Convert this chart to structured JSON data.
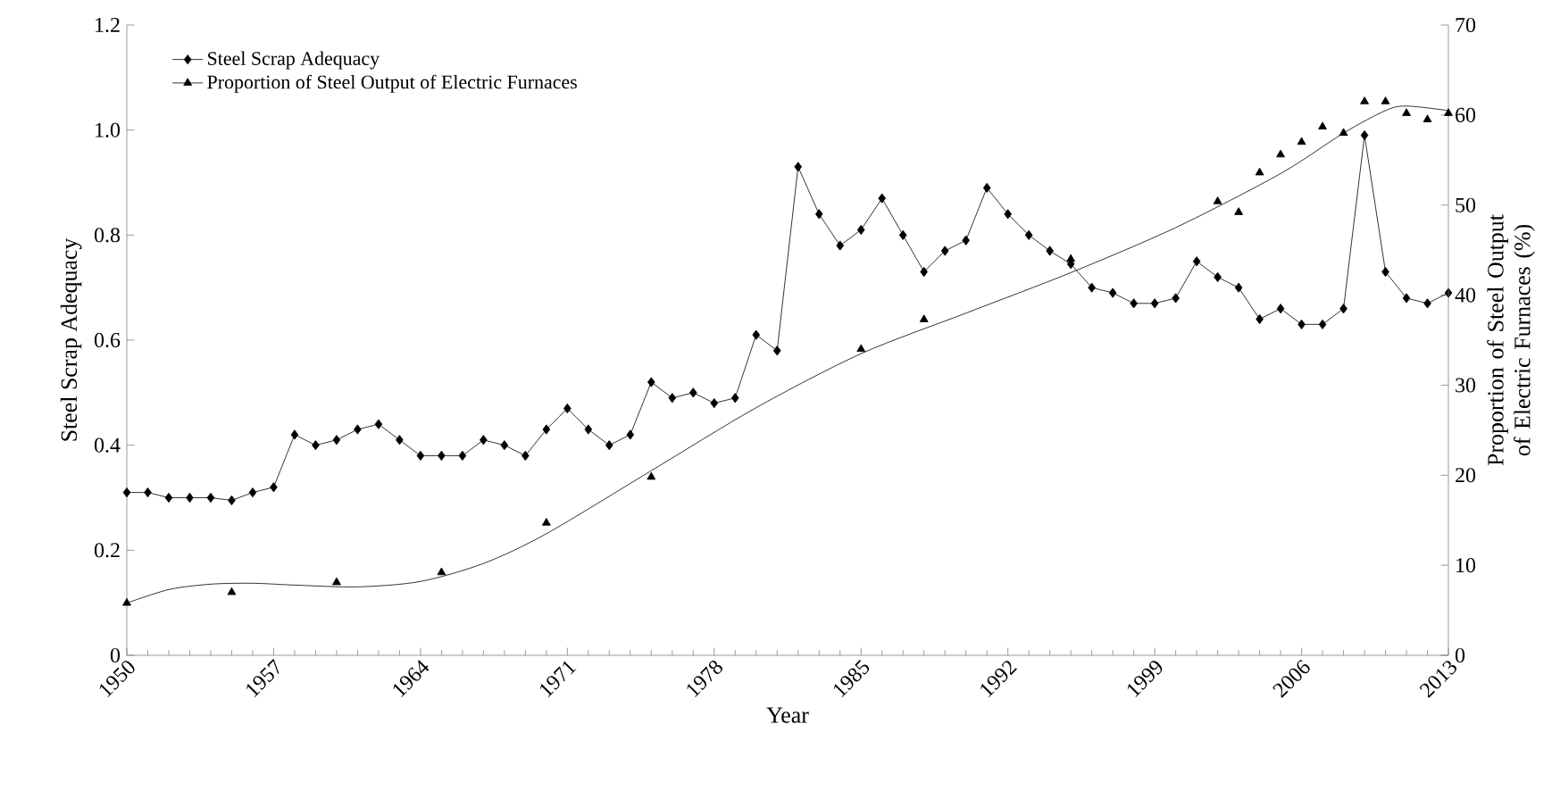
{
  "chart_data": {
    "type": "line",
    "xlabel": "Year",
    "ylabel": "Steel Scrap Adequacy",
    "y2label": "Proportion of Steel Output of Electric Furnaces (%)",
    "xlim": [
      1950,
      2013
    ],
    "xticks": [
      1950,
      1957,
      1964,
      1971,
      1978,
      1985,
      1992,
      1999,
      2006,
      2013
    ],
    "ylim": [
      0,
      1.2
    ],
    "yticks": [
      0,
      0.2,
      0.4,
      0.6,
      0.8,
      {
        "value": 1,
        "label": "1.0"
      },
      1.2
    ],
    "y2lim": [
      0,
      70
    ],
    "y2ticks": [
      0,
      10,
      20,
      30,
      40,
      50,
      60,
      70
    ],
    "legend": "top left",
    "grid": false,
    "series": [
      {
        "name": "Steel Scrap Adequacy",
        "marker": "diamond",
        "color": "#000000",
        "x": [
          1950,
          1951,
          1952,
          1953,
          1954,
          1955,
          1956,
          1957,
          1958,
          1959,
          1960,
          1961,
          1962,
          1963,
          1964,
          1965,
          1966,
          1967,
          1968,
          1969,
          1970,
          1971,
          1972,
          1973,
          1974,
          1975,
          1976,
          1977,
          1978,
          1979,
          1980,
          1981,
          1982,
          1983,
          1984,
          1985,
          1986,
          1987,
          1988,
          1989,
          1990,
          1991,
          1992,
          1993,
          1994,
          1995,
          1996,
          1997,
          1998,
          1999,
          2000,
          2001,
          2002,
          2003,
          2004,
          2005,
          2006,
          2007,
          2008,
          2009,
          2010,
          2011,
          2012,
          2013
        ],
        "values": [
          0.31,
          0.31,
          0.3,
          0.3,
          0.3,
          0.295,
          0.31,
          0.32,
          0.42,
          0.4,
          0.41,
          0.43,
          0.44,
          0.41,
          0.38,
          0.38,
          0.38,
          0.41,
          0.4,
          0.38,
          0.43,
          0.47,
          0.43,
          0.4,
          0.42,
          0.52,
          0.49,
          0.5,
          0.48,
          0.49,
          0.61,
          0.58,
          0.93,
          0.84,
          0.78,
          0.81,
          0.87,
          0.8,
          0.73,
          0.77,
          0.79,
          0.89,
          0.84,
          0.8,
          0.77,
          0.745,
          0.7,
          0.69,
          0.67,
          0.67,
          0.68,
          0.75,
          0.72,
          0.7,
          0.64,
          0.66,
          0.63,
          0.63,
          0.66,
          0.99,
          0.73,
          0.68,
          0.67,
          0.69
        ]
      },
      {
        "name": "Proportion of Steel Output of Electric Furnaces",
        "type": "scatter",
        "marker": "triangle",
        "axis": "y2",
        "color": "#000000",
        "x": [
          1950,
          1955,
          1960,
          1965,
          1970,
          1975,
          1985,
          1988,
          1995,
          2002,
          2003,
          2004,
          2005,
          2006,
          2007,
          2008,
          2009,
          2010,
          2011,
          2012,
          2013
        ],
        "values": [
          5.8,
          7,
          8.1,
          9.2,
          14.7,
          19.8,
          34,
          37.3,
          44,
          50.4,
          49.2,
          53.6,
          55.6,
          57,
          58.7,
          58,
          61.5,
          61.5,
          60.2,
          59.5,
          60.2
        ]
      },
      {
        "marker": "none",
        "axis": "y2",
        "color": "#000000",
        "x": [
          1950,
          1952,
          1954,
          1956,
          1958,
          1961,
          1964,
          1967,
          1970,
          1975,
          1980,
          1985,
          1990,
          1995,
          2000,
          2005,
          2008,
          2010,
          2011,
          2013
        ],
        "values": [
          5.8,
          7.3,
          7.9,
          8,
          7.8,
          7.6,
          8.2,
          10.2,
          13.5,
          20.5,
          27.5,
          33.5,
          38,
          42.5,
          47.5,
          53.5,
          58,
          60.5,
          61,
          60.5
        ]
      }
    ]
  }
}
